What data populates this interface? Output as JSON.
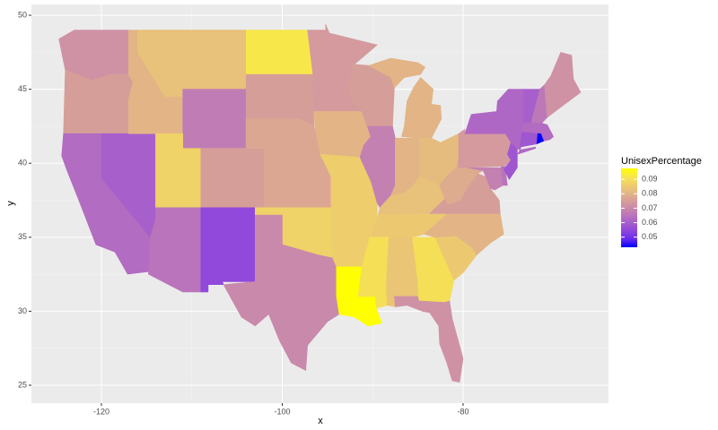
{
  "chart_data": {
    "type": "choropleth",
    "xlabel": "x",
    "ylabel": "y",
    "xlim": [
      -127.74,
      -63.92
    ],
    "ylim": [
      23.79,
      50.73
    ],
    "xticks": [
      -120,
      -100,
      -80
    ],
    "yticks": [
      25,
      30,
      35,
      40,
      45,
      50
    ],
    "grid": true,
    "legend_title": "UnisexPercentage",
    "legend_ticks": [
      0.05,
      0.06,
      0.07,
      0.08,
      0.09
    ],
    "low_color": "#0000ff",
    "high_color": "#ffff00",
    "values": [
      0.072,
      0.075,
      0.063,
      0.06,
      0.08,
      0.083,
      0.067,
      0.087,
      0.065,
      0.075,
      0.055,
      0.092,
      0.075,
      0.077,
      0.077,
      0.087,
      0.07,
      0.074,
      0.08,
      0.086,
      0.086,
      0.0975,
      0.075,
      0.068,
      0.08,
      0.08,
      0.082,
      0.083,
      0.085,
      0.09,
      0.084,
      0.09,
      0.072,
      0.085,
      0.08,
      0.075,
      0.078,
      0.068,
      0.065,
      0.074,
      0.058,
      0.062,
      0.06,
      0.066,
      0.072,
      0.063,
      0.043,
      0.058
    ]
  }
}
